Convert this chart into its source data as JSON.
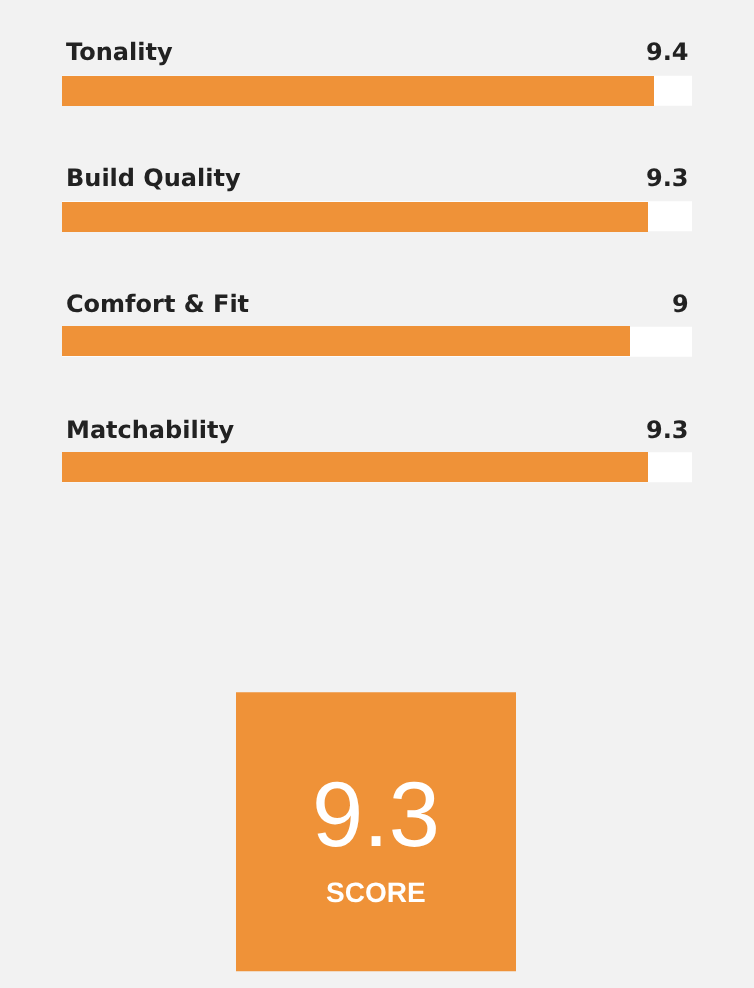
{
  "chart_data": {
    "type": "bar",
    "orientation": "horizontal",
    "categories": [
      "Tonality",
      "Build Quality",
      "Comfort & Fit",
      "Matchability"
    ],
    "values": [
      9.4,
      9.3,
      9,
      9.3
    ],
    "color": "#ef9238",
    "xlim": [
      0,
      10
    ],
    "data_labels": true,
    "tick_labels": false,
    "annotations": [
      "9.3",
      "SCORE"
    ]
  }
}
